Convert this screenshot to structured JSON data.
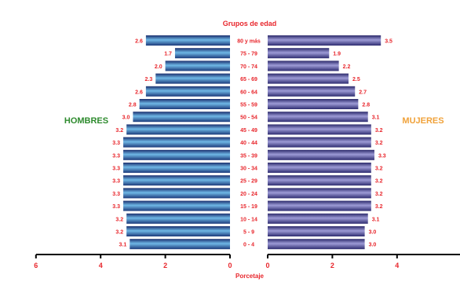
{
  "chart_data": {
    "type": "bar",
    "title": "Grupos de edad",
    "xlabel": "Porcetaje",
    "categories": [
      "80 y más",
      "75 - 79",
      "70 - 74",
      "65 - 69",
      "60 - 64",
      "55 - 59",
      "50 - 54",
      "45 - 49",
      "40 - 44",
      "35 - 39",
      "30 - 34",
      "25 - 29",
      "20 - 24",
      "15 - 19",
      "10 - 14",
      "5 - 9",
      "0 - 4"
    ],
    "series": [
      {
        "name": "HOMBRES",
        "values": [
          2.6,
          1.7,
          2.0,
          2.3,
          2.6,
          2.8,
          3.0,
          3.2,
          3.3,
          3.3,
          3.3,
          3.3,
          3.3,
          3.3,
          3.2,
          3.2,
          3.1
        ],
        "value_labels": [
          "2.6",
          "1.7",
          "2.0",
          "2.3",
          "2.6",
          "2.8",
          "3.0",
          "3.2",
          "3.3",
          "3.3",
          "3.3",
          "3.3",
          "3.3",
          "3.3",
          "3.2",
          "3.2",
          "3.1"
        ]
      },
      {
        "name": "MUJERES",
        "values": [
          3.5,
          1.9,
          2.2,
          2.5,
          2.7,
          2.8,
          3.1,
          3.2,
          3.2,
          3.3,
          3.2,
          3.2,
          3.2,
          3.2,
          3.1,
          3.0,
          3.0
        ],
        "value_labels": [
          "3.5",
          "1.9",
          "2.2",
          "2.5",
          "2.7",
          "2.8",
          "3.1",
          "3.2",
          "3.2",
          "3.3",
          "3.2",
          "3.2",
          "3.2",
          "3.2",
          "3.1",
          "3.0",
          "3.0"
        ]
      }
    ],
    "left_axis": {
      "ticks": [
        6,
        4,
        2,
        0
      ],
      "xlim": [
        6,
        0
      ]
    },
    "right_axis": {
      "ticks": [
        0,
        2,
        4
      ],
      "xlim": [
        0,
        6
      ]
    },
    "colors": {
      "HOMBRES": "#3f86c2",
      "MUJERES": "#6b6aaa",
      "title": "#e8262c",
      "value_labels": "#e8262c",
      "category_labels": "#e8262c",
      "hombres_label": "#2e8b2e",
      "mujeres_label": "#f0a23a"
    }
  }
}
